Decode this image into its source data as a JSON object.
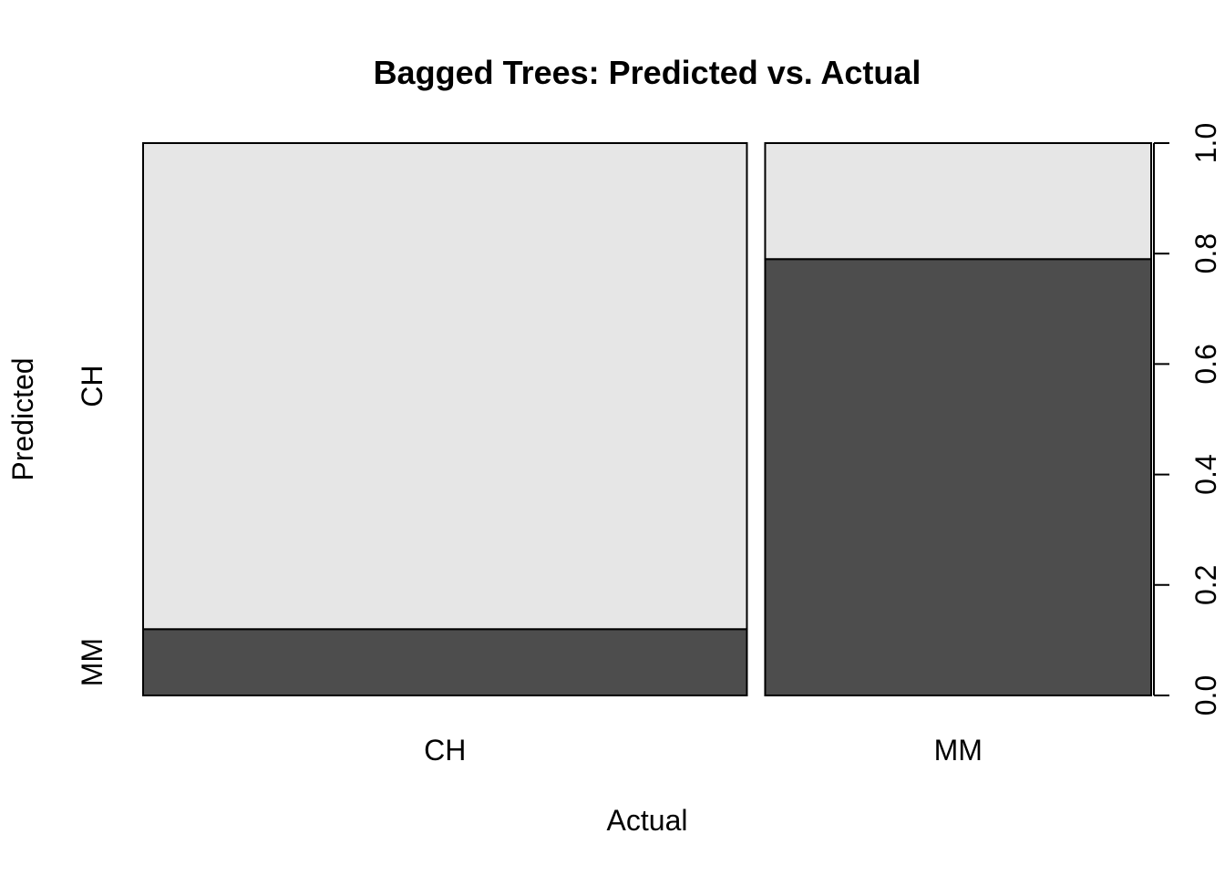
{
  "chart_data": {
    "type": "mosaic",
    "title": "Bagged Trees: Predicted vs. Actual",
    "xlabel": "Actual",
    "ylabel": "Predicted",
    "x_categories": [
      "CH",
      "MM"
    ],
    "x_widths": [
      0.61,
      0.39
    ],
    "y_categories": [
      "MM",
      "CH"
    ],
    "series": [
      {
        "name": "MM",
        "values": [
          0.12,
          0.79
        ]
      },
      {
        "name": "CH",
        "values": [
          0.88,
          0.21
        ]
      }
    ],
    "y_axis": {
      "range": [
        0,
        1
      ],
      "ticks": [
        "0.0",
        "0.2",
        "0.4",
        "0.6",
        "0.8",
        "1.0"
      ],
      "position": "right"
    },
    "colors": {
      "MM": "#4d4d4d",
      "CH": "#e6e6e6"
    },
    "grid": false
  }
}
